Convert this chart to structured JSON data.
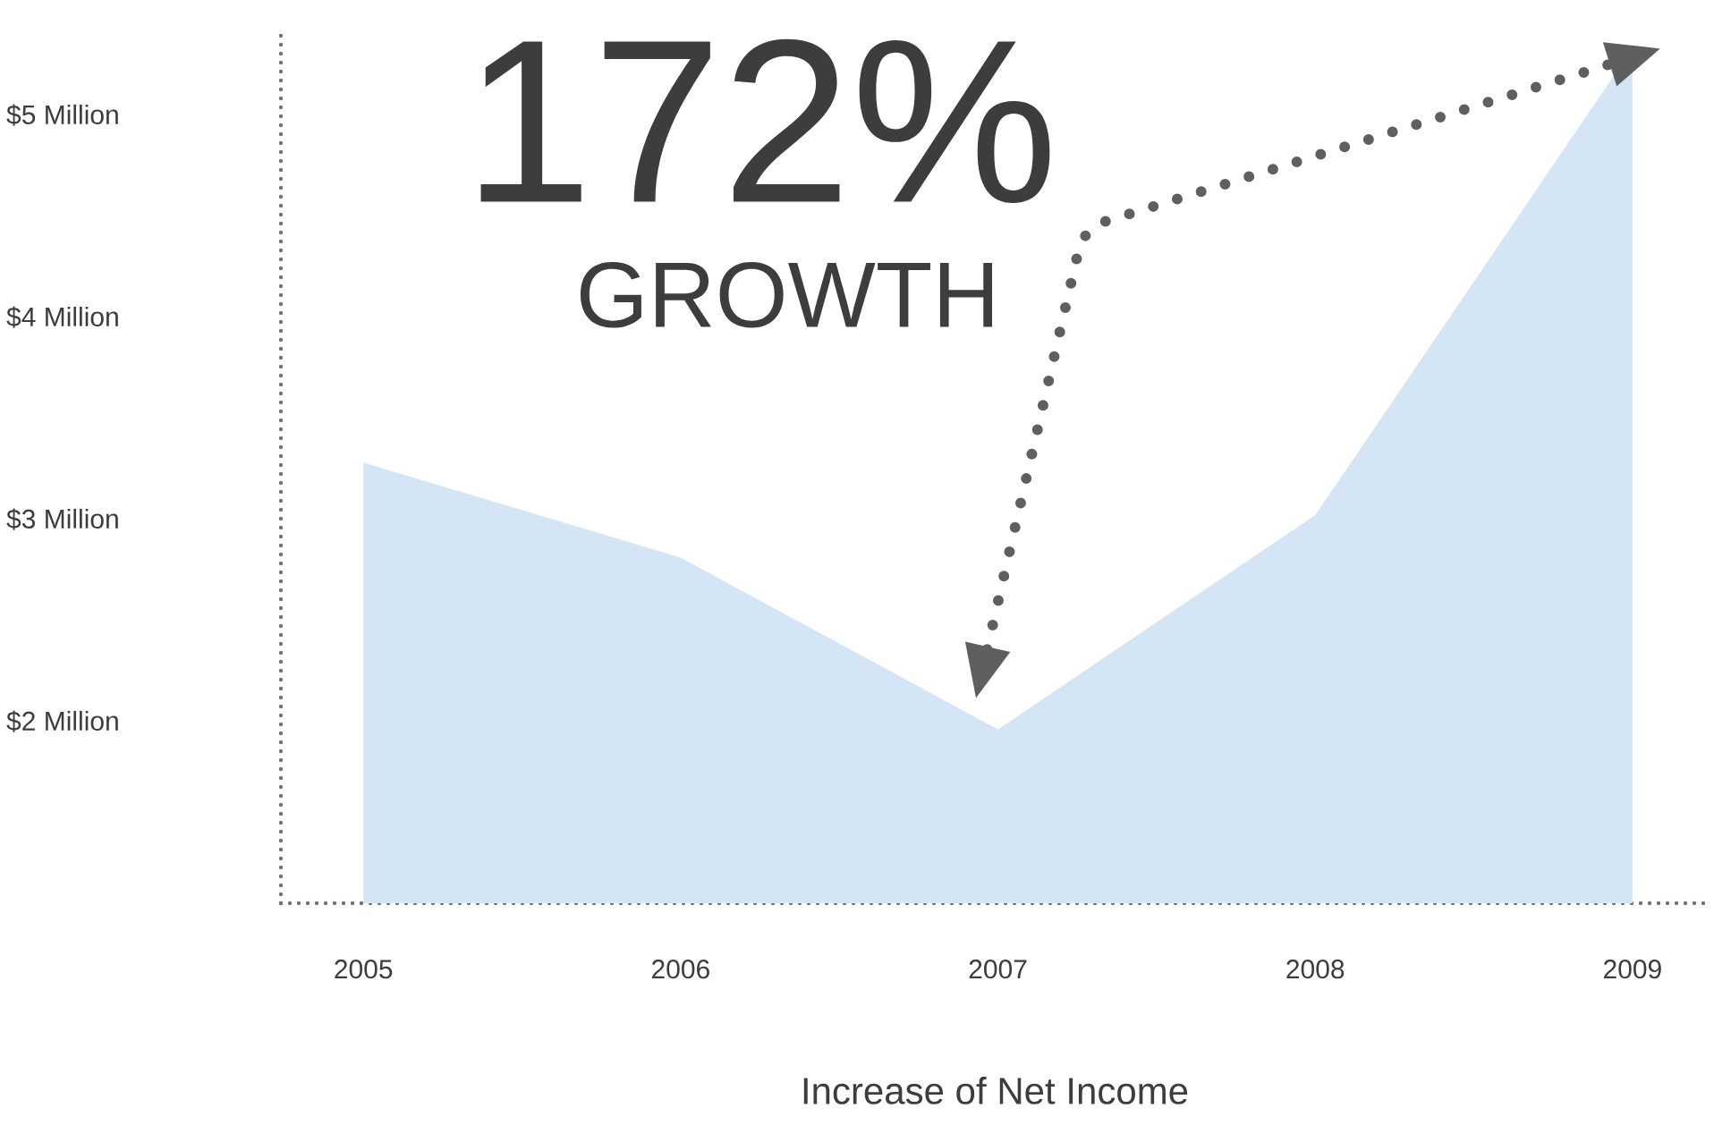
{
  "chart_data": {
    "type": "area",
    "xlabel": "Increase of Net Income",
    "annotations": [
      "172%",
      "GROWTH"
    ],
    "categories": [
      "2005",
      "2006",
      "2007",
      "2008",
      "2009"
    ],
    "values": [
      3.28,
      2.81,
      1.96,
      3.02,
      5.33
    ],
    "color": "#d4e6f5",
    "ylim": [
      1.1,
      5.4
    ],
    "yticks": [
      {
        "value": 2,
        "label": "$2 Million"
      },
      {
        "value": 3,
        "label": "$3 Million"
      },
      {
        "value": 4,
        "label": "$4 Million"
      },
      {
        "value": 5,
        "label": "$5 Million"
      }
    ]
  }
}
